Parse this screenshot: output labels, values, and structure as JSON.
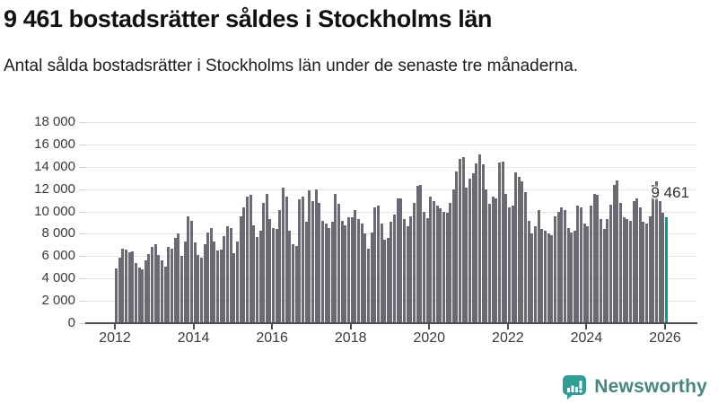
{
  "header": {
    "title": "9 461 bostadsrätter såldes i Stockholms län",
    "subtitle": "Antal sålda bostadsrätter i Stockholms län under de senaste tre månaderna."
  },
  "chart_data": {
    "type": "bar",
    "title": "9 461 bostadsrätter såldes i Stockholms län",
    "xlabel": "",
    "ylabel": "",
    "ylim": [
      0,
      18000
    ],
    "grid": "horizontal",
    "bar_color": "#6a6a72",
    "highlight_color": "#009e96",
    "highlight_index": 168,
    "highlight_label": "9 461",
    "y_ticks": [
      0,
      2000,
      4000,
      6000,
      8000,
      10000,
      12000,
      14000,
      16000,
      18000
    ],
    "y_tick_labels": [
      "0",
      "2 000",
      "4 000",
      "6 000",
      "8 000",
      "10 000",
      "12 000",
      "14 000",
      "16 000",
      "18 000"
    ],
    "x_ticks": [
      {
        "year": 2012,
        "label": "2012"
      },
      {
        "year": 2014,
        "label": "2014"
      },
      {
        "year": 2016,
        "label": "2016"
      },
      {
        "year": 2018,
        "label": "2018"
      },
      {
        "year": 2020,
        "label": "2020"
      },
      {
        "year": 2022,
        "label": "2022"
      },
      {
        "year": 2024,
        "label": "2024"
      },
      {
        "year": 2026,
        "label": "2026"
      }
    ],
    "x": [
      "2012-01",
      "2012-02",
      "2012-03",
      "2012-04",
      "2012-05",
      "2012-06",
      "2012-07",
      "2012-08",
      "2012-09",
      "2012-10",
      "2012-11",
      "2012-12",
      "2013-01",
      "2013-02",
      "2013-03",
      "2013-04",
      "2013-05",
      "2013-06",
      "2013-07",
      "2013-08",
      "2013-09",
      "2013-10",
      "2013-11",
      "2013-12",
      "2014-01",
      "2014-02",
      "2014-03",
      "2014-04",
      "2014-05",
      "2014-06",
      "2014-07",
      "2014-08",
      "2014-09",
      "2014-10",
      "2014-11",
      "2014-12",
      "2015-01",
      "2015-02",
      "2015-03",
      "2015-04",
      "2015-05",
      "2015-06",
      "2015-07",
      "2015-08",
      "2015-09",
      "2015-10",
      "2015-11",
      "2015-12",
      "2016-01",
      "2016-02",
      "2016-03",
      "2016-04",
      "2016-05",
      "2016-06",
      "2016-07",
      "2016-08",
      "2016-09",
      "2016-10",
      "2016-11",
      "2016-12",
      "2017-01",
      "2017-02",
      "2017-03",
      "2017-04",
      "2017-05",
      "2017-06",
      "2017-07",
      "2017-08",
      "2017-09",
      "2017-10",
      "2017-11",
      "2017-12",
      "2018-01",
      "2018-02",
      "2018-03",
      "2018-04",
      "2018-05",
      "2018-06",
      "2018-07",
      "2018-08",
      "2018-09",
      "2018-10",
      "2018-11",
      "2018-12",
      "2019-01",
      "2019-02",
      "2019-03",
      "2019-04",
      "2019-05",
      "2019-06",
      "2019-07",
      "2019-08",
      "2019-09",
      "2019-10",
      "2019-11",
      "2019-12",
      "2020-01",
      "2020-02",
      "2020-03",
      "2020-04",
      "2020-05",
      "2020-06",
      "2020-07",
      "2020-08",
      "2020-09",
      "2020-10",
      "2020-11",
      "2020-12",
      "2021-01",
      "2021-02",
      "2021-03",
      "2021-04",
      "2021-05",
      "2021-06",
      "2021-07",
      "2021-08",
      "2021-09",
      "2021-10",
      "2021-11",
      "2021-12",
      "2022-01",
      "2022-02",
      "2022-03",
      "2022-04",
      "2022-05",
      "2022-06",
      "2022-07",
      "2022-08",
      "2022-09",
      "2022-10",
      "2022-11",
      "2022-12",
      "2023-01",
      "2023-02",
      "2023-03",
      "2023-04",
      "2023-05",
      "2023-06",
      "2023-07",
      "2023-08",
      "2023-09",
      "2023-10",
      "2023-11",
      "2023-12",
      "2024-01",
      "2024-02",
      "2024-03",
      "2024-04",
      "2024-05",
      "2024-06",
      "2024-07",
      "2024-08",
      "2024-09",
      "2024-10",
      "2024-11",
      "2024-12",
      "2025-01",
      "2025-02",
      "2025-03",
      "2025-04",
      "2025-05",
      "2025-06",
      "2025-07",
      "2025-08",
      "2025-09",
      "2025-10",
      "2025-11",
      "2025-12",
      "2026-01"
    ],
    "values": [
      4900,
      5900,
      6650,
      6600,
      6350,
      6400,
      5350,
      4950,
      4800,
      5600,
      6200,
      6800,
      7100,
      6100,
      5600,
      5100,
      6800,
      6700,
      7600,
      8000,
      6000,
      7300,
      9600,
      9200,
      7200,
      6100,
      5900,
      7100,
      8100,
      8500,
      7300,
      6500,
      6600,
      7800,
      8700,
      8500,
      6300,
      7300,
      9600,
      10400,
      11300,
      11500,
      8800,
      7700,
      8300,
      10800,
      11600,
      9300,
      8500,
      8400,
      10100,
      12100,
      11300,
      8300,
      7100,
      6900,
      11100,
      11300,
      9100,
      11900,
      10900,
      12000,
      10800,
      9200,
      8900,
      8500,
      9100,
      11600,
      10700,
      9200,
      8800,
      9500,
      9500,
      10100,
      9300,
      8900,
      8000,
      6700,
      8100,
      10400,
      10500,
      8900,
      7500,
      7600,
      9100,
      9700,
      11200,
      11200,
      9300,
      8700,
      9600,
      10800,
      12300,
      12400,
      10000,
      9400,
      11300,
      10900,
      10500,
      10300,
      10000,
      9900,
      10800,
      12000,
      13600,
      14700,
      14900,
      12100,
      12900,
      13400,
      14300,
      15100,
      14200,
      12000,
      10700,
      11300,
      11200,
      14400,
      14500,
      11600,
      10400,
      10500,
      13500,
      13100,
      12700,
      11700,
      9200,
      8000,
      8700,
      10100,
      8400,
      8300,
      8000,
      7900,
      9600,
      10000,
      10400,
      10100,
      8500,
      8100,
      8300,
      10500,
      10400,
      8900,
      8700,
      10500,
      11600,
      11500,
      9300,
      8400,
      9300,
      10600,
      12400,
      12800,
      10800,
      9500,
      9300,
      9200,
      10900,
      11200,
      10400,
      9100,
      8900,
      9600,
      12400,
      12700,
      10900,
      9900,
      9461
    ]
  },
  "footer": {
    "brand": "Newsworthy",
    "logo_icon": "bar-chart-speech-bubble-icon",
    "brand_text_color": "#46867f",
    "icon_color": "#2f9e96"
  }
}
